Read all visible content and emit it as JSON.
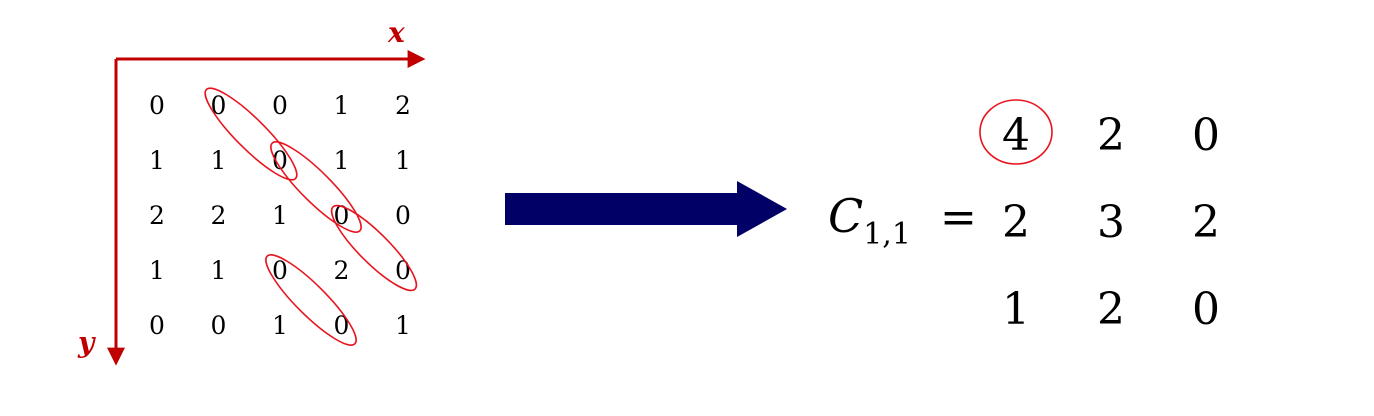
{
  "axes": {
    "x_label": "x",
    "y_label": "y",
    "axis_color": "#c00000"
  },
  "input_matrix": [
    [
      "0",
      "0",
      "0",
      "1",
      "2"
    ],
    [
      "1",
      "1",
      "0",
      "1",
      "1"
    ],
    [
      "2",
      "2",
      "1",
      "0",
      "0"
    ],
    [
      "1",
      "1",
      "0",
      "2",
      "0"
    ],
    [
      "0",
      "0",
      "1",
      "0",
      "1"
    ]
  ],
  "arrow_color": "#000066",
  "equation": {
    "symbol": "C",
    "subscript": "1,1",
    "equals": "="
  },
  "result_matrix": [
    [
      "4",
      "2",
      "0"
    ],
    [
      "2",
      "3",
      "2"
    ],
    [
      "1",
      "2",
      "0"
    ]
  ],
  "highlight_color": "#e8141e"
}
